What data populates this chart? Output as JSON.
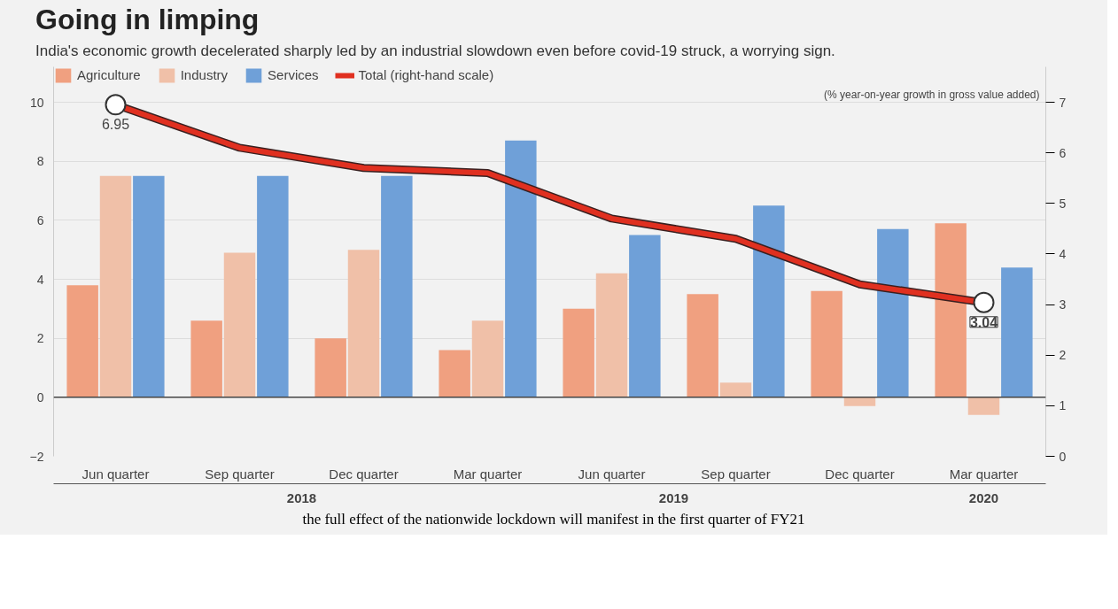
{
  "chart_data": {
    "type": "bar",
    "title": "Going in limping",
    "subtitle": "India's economic growth decelerated sharply led by an industrial slowdown even before covid-19 struck, a worrying sign.",
    "categories": [
      "Jun quarter",
      "Sep quarter",
      "Dec quarter",
      "Mar quarter",
      "Jun quarter",
      "Sep quarter",
      "Dec quarter",
      "Mar quarter"
    ],
    "series": [
      {
        "name": "Agriculture",
        "color": "#f0a080",
        "values": [
          3.8,
          2.6,
          2.0,
          1.6,
          3.0,
          3.5,
          3.6,
          5.9
        ]
      },
      {
        "name": "Industry",
        "color": "#f0c0a8",
        "values": [
          7.5,
          4.9,
          5.0,
          2.6,
          4.2,
          0.5,
          -0.3,
          -0.6
        ]
      },
      {
        "name": "Services",
        "color": "#6fa0d8",
        "values": [
          7.5,
          7.5,
          7.5,
          8.7,
          5.5,
          6.5,
          5.7,
          4.4
        ]
      },
      {
        "name": "Total (right-hand scale)",
        "type": "line",
        "axis": "y2",
        "color": "#e03020",
        "values": [
          6.95,
          6.1,
          5.7,
          5.6,
          4.7,
          4.3,
          3.4,
          3.04
        ],
        "value_labels": [
          "6.95",
          null,
          null,
          null,
          null,
          null,
          null,
          "3.04"
        ]
      }
    ],
    "ylim": [
      -2,
      11.2
    ],
    "yticks": [
      -2,
      0,
      2,
      4,
      6,
      8,
      10
    ],
    "y2lim": [
      0,
      7.7
    ],
    "y2ticks": [
      0,
      1,
      2,
      3,
      4,
      5,
      6,
      7
    ],
    "grid": "y",
    "legend": "top left",
    "annotations": [
      "(% year-on-year growth in gross value added)",
      "2018",
      "2019",
      "2020",
      "the full effect of the nationwide lockdown will manifest in the first quarter of FY21"
    ]
  }
}
